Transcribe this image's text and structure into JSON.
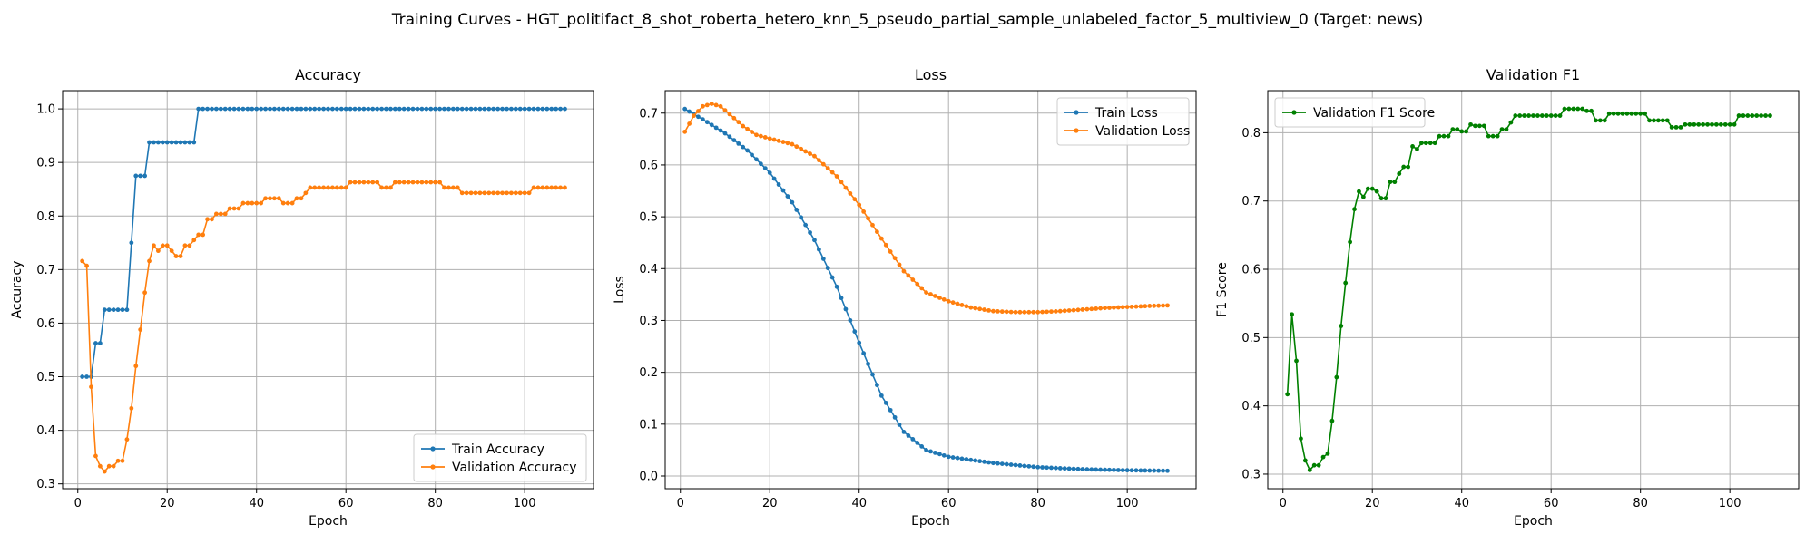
{
  "figure_title": "Training Curves - HGT_politifact_8_shot_roberta_hetero_knn_5_pseudo_partial_sample_unlabeled_factor_5_multiview_0 (Target: news)",
  "colors": {
    "blue": "#1f77b4",
    "orange": "#ff7f0e",
    "green": "#008000",
    "grid": "#b0b0b0"
  },
  "chart_data": [
    {
      "type": "line",
      "title": "Accuracy",
      "xlabel": "Epoch",
      "ylabel": "Accuracy",
      "xlim": [
        -3.4,
        115.4
      ],
      "ylim": [
        0.291,
        1.034
      ],
      "xticks": [
        0,
        20,
        40,
        60,
        80,
        100
      ],
      "yticks": [
        0.3,
        0.4,
        0.5,
        0.6,
        0.7,
        0.8,
        0.9,
        1.0
      ],
      "ytick_labels": [
        "0.3",
        "0.4",
        "0.5",
        "0.6",
        "0.7",
        "0.8",
        "0.9",
        "1.0"
      ],
      "grid": true,
      "legend_position": "lower-right",
      "series": [
        {
          "name": "Train Accuracy",
          "color": "#1f77b4",
          "points": [
            [
              1,
              0.5
            ],
            [
              3,
              0.5
            ],
            [
              4,
              0.5625
            ],
            [
              5,
              0.5625
            ],
            [
              6,
              0.625
            ],
            [
              11,
              0.625
            ],
            [
              12,
              0.75
            ],
            [
              13,
              0.875
            ],
            [
              15,
              0.875
            ],
            [
              16,
              0.9375
            ],
            [
              26,
              0.9375
            ],
            [
              27,
              1.0
            ],
            [
              109,
              1.0
            ]
          ]
        },
        {
          "name": "Validation Accuracy",
          "color": "#ff7f0e",
          "points": [
            [
              1,
              0.716
            ],
            [
              2,
              0.707
            ],
            [
              3,
              0.481
            ],
            [
              4,
              0.352
            ],
            [
              5,
              0.333
            ],
            [
              6,
              0.323
            ],
            [
              7,
              0.333
            ],
            [
              8,
              0.333
            ],
            [
              9,
              0.343
            ],
            [
              10,
              0.343
            ],
            [
              11,
              0.383
            ],
            [
              12,
              0.441
            ],
            [
              13,
              0.52
            ],
            [
              14,
              0.588
            ],
            [
              15,
              0.657
            ],
            [
              16,
              0.716
            ],
            [
              17,
              0.745
            ],
            [
              18,
              0.735
            ],
            [
              19,
              0.745
            ],
            [
              20,
              0.745
            ],
            [
              21,
              0.735
            ],
            [
              22,
              0.725
            ],
            [
              23,
              0.725
            ],
            [
              24,
              0.745
            ],
            [
              25,
              0.745
            ],
            [
              26,
              0.755
            ],
            [
              27,
              0.765
            ],
            [
              28,
              0.765
            ],
            [
              29,
              0.794
            ],
            [
              30,
              0.794
            ],
            [
              31,
              0.804
            ],
            [
              32,
              0.804
            ],
            [
              33,
              0.804
            ],
            [
              34,
              0.814
            ],
            [
              35,
              0.814
            ],
            [
              36,
              0.814
            ],
            [
              37,
              0.824
            ],
            [
              38,
              0.824
            ],
            [
              39,
              0.824
            ],
            [
              40,
              0.824
            ],
            [
              41,
              0.824
            ],
            [
              42,
              0.833
            ],
            [
              43,
              0.833
            ],
            [
              44,
              0.833
            ],
            [
              45,
              0.833
            ],
            [
              46,
              0.824
            ],
            [
              47,
              0.824
            ],
            [
              48,
              0.824
            ],
            [
              49,
              0.833
            ],
            [
              50,
              0.833
            ],
            [
              51,
              0.843
            ],
            [
              52,
              0.853
            ],
            [
              53,
              0.853
            ],
            [
              60,
              0.853
            ],
            [
              61,
              0.863
            ],
            [
              67,
              0.863
            ],
            [
              68,
              0.853
            ],
            [
              70,
              0.853
            ],
            [
              71,
              0.863
            ],
            [
              81,
              0.863
            ],
            [
              82,
              0.853
            ],
            [
              85,
              0.853
            ],
            [
              86,
              0.843
            ],
            [
              101,
              0.843
            ],
            [
              102,
              0.853
            ],
            [
              109,
              0.853
            ]
          ]
        }
      ]
    },
    {
      "type": "line",
      "title": "Loss",
      "xlabel": "Epoch",
      "ylabel": "Loss",
      "xlim": [
        -3.4,
        115.4
      ],
      "ylim": [
        -0.0245,
        0.7433
      ],
      "xticks": [
        0,
        20,
        40,
        60,
        80,
        100
      ],
      "yticks": [
        0.0,
        0.1,
        0.2,
        0.3,
        0.4,
        0.5,
        0.6,
        0.7
      ],
      "ytick_labels": [
        "0.0",
        "0.1",
        "0.2",
        "0.3",
        "0.4",
        "0.5",
        "0.6",
        "0.7"
      ],
      "grid": true,
      "legend_position": "upper-right",
      "series": [
        {
          "name": "Train Loss",
          "color": "#1f77b4",
          "points": [
            [
              1,
              0.708
            ],
            [
              5,
              0.688
            ],
            [
              10,
              0.661
            ],
            [
              15,
              0.628
            ],
            [
              20,
              0.585
            ],
            [
              25,
              0.528
            ],
            [
              30,
              0.455
            ],
            [
              35,
              0.365
            ],
            [
              40,
              0.257
            ],
            [
              45,
              0.155
            ],
            [
              50,
              0.085
            ],
            [
              55,
              0.05
            ],
            [
              60,
              0.037
            ],
            [
              70,
              0.025
            ],
            [
              80,
              0.017
            ],
            [
              90,
              0.013
            ],
            [
              100,
              0.011
            ],
            [
              109,
              0.01
            ]
          ]
        },
        {
          "name": "Validation Loss",
          "color": "#ff7f0e",
          "points": [
            [
              1,
              0.664
            ],
            [
              3,
              0.695
            ],
            [
              5,
              0.713
            ],
            [
              7,
              0.718
            ],
            [
              9,
              0.713
            ],
            [
              11,
              0.698
            ],
            [
              14,
              0.675
            ],
            [
              17,
              0.658
            ],
            [
              20,
              0.651
            ],
            [
              25,
              0.64
            ],
            [
              30,
              0.617
            ],
            [
              35,
              0.578
            ],
            [
              40,
              0.523
            ],
            [
              45,
              0.458
            ],
            [
              50,
              0.395
            ],
            [
              55,
              0.354
            ],
            [
              60,
              0.337
            ],
            [
              65,
              0.325
            ],
            [
              70,
              0.318
            ],
            [
              75,
              0.316
            ],
            [
              80,
              0.316
            ],
            [
              85,
              0.318
            ],
            [
              90,
              0.321
            ],
            [
              95,
              0.324
            ],
            [
              100,
              0.326
            ],
            [
              105,
              0.328
            ],
            [
              109,
              0.329
            ]
          ]
        }
      ]
    },
    {
      "type": "line",
      "title": "Validation F1",
      "xlabel": "Epoch",
      "ylabel": "F1 Score",
      "xlim": [
        -3.4,
        115.4
      ],
      "ylim": [
        0.2787,
        0.8616
      ],
      "xticks": [
        0,
        20,
        40,
        60,
        80,
        100
      ],
      "yticks": [
        0.3,
        0.4,
        0.5,
        0.6,
        0.7,
        0.8
      ],
      "ytick_labels": [
        "0.3",
        "0.4",
        "0.5",
        "0.6",
        "0.7",
        "0.8"
      ],
      "grid": true,
      "legend_position": "upper-left",
      "series": [
        {
          "name": "Validation F1 Score",
          "color": "#008000",
          "points": [
            [
              1,
              0.417
            ],
            [
              2,
              0.534
            ],
            [
              3,
              0.466
            ],
            [
              4,
              0.352
            ],
            [
              5,
              0.32
            ],
            [
              6,
              0.306
            ],
            [
              7,
              0.313
            ],
            [
              8,
              0.313
            ],
            [
              9,
              0.325
            ],
            [
              10,
              0.33
            ],
            [
              11,
              0.378
            ],
            [
              12,
              0.442
            ],
            [
              13,
              0.517
            ],
            [
              14,
              0.58
            ],
            [
              15,
              0.64
            ],
            [
              16,
              0.688
            ],
            [
              17,
              0.714
            ],
            [
              18,
              0.706
            ],
            [
              19,
              0.718
            ],
            [
              20,
              0.718
            ],
            [
              21,
              0.714
            ],
            [
              22,
              0.704
            ],
            [
              23,
              0.704
            ],
            [
              24,
              0.728
            ],
            [
              25,
              0.728
            ],
            [
              26,
              0.74
            ],
            [
              27,
              0.75
            ],
            [
              28,
              0.75
            ],
            [
              29,
              0.78
            ],
            [
              30,
              0.776
            ],
            [
              31,
              0.785
            ],
            [
              32,
              0.785
            ],
            [
              33,
              0.785
            ],
            [
              34,
              0.785
            ],
            [
              35,
              0.795
            ],
            [
              36,
              0.795
            ],
            [
              37,
              0.795
            ],
            [
              38,
              0.805
            ],
            [
              39,
              0.805
            ],
            [
              40,
              0.802
            ],
            [
              41,
              0.802
            ],
            [
              42,
              0.812
            ],
            [
              43,
              0.81
            ],
            [
              44,
              0.81
            ],
            [
              45,
              0.81
            ],
            [
              46,
              0.795
            ],
            [
              47,
              0.795
            ],
            [
              48,
              0.795
            ],
            [
              49,
              0.805
            ],
            [
              50,
              0.805
            ],
            [
              51,
              0.815
            ],
            [
              52,
              0.825
            ],
            [
              62,
              0.825
            ],
            [
              63,
              0.835
            ],
            [
              67,
              0.835
            ],
            [
              68,
              0.832
            ],
            [
              69,
              0.832
            ],
            [
              70,
              0.818
            ],
            [
              72,
              0.818
            ],
            [
              73,
              0.828
            ],
            [
              81,
              0.828
            ],
            [
              82,
              0.818
            ],
            [
              86,
              0.818
            ],
            [
              87,
              0.808
            ],
            [
              89,
              0.808
            ],
            [
              90,
              0.812
            ],
            [
              101,
              0.812
            ],
            [
              102,
              0.825
            ],
            [
              109,
              0.825
            ]
          ]
        }
      ]
    }
  ]
}
